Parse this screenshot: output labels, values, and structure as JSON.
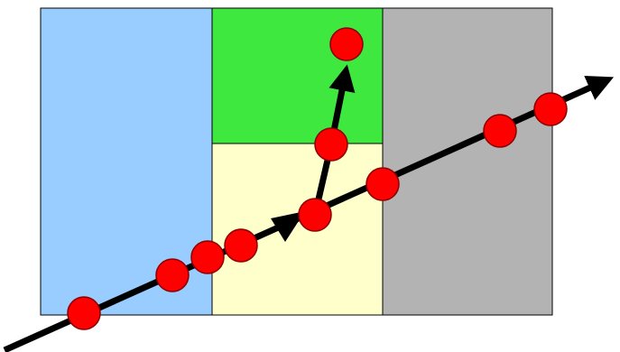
{
  "regions": [
    {
      "id": "blue",
      "color": "#99ccff"
    },
    {
      "id": "green",
      "color": "#3ee83e"
    },
    {
      "id": "yellow",
      "color": "#ffffcc"
    },
    {
      "id": "gray",
      "color": "#b3b3b3"
    }
  ],
  "colors": {
    "border": "#000000",
    "path": "#000000",
    "point_fill": "#ff0000",
    "point_stroke": "#8a0000"
  },
  "icons": {
    "arrowhead": "arrow-head-icon",
    "point": "red-circle-icon"
  },
  "main_path": {
    "points_on_path": 8
  },
  "branch_path": {
    "points_on_path": 2
  }
}
